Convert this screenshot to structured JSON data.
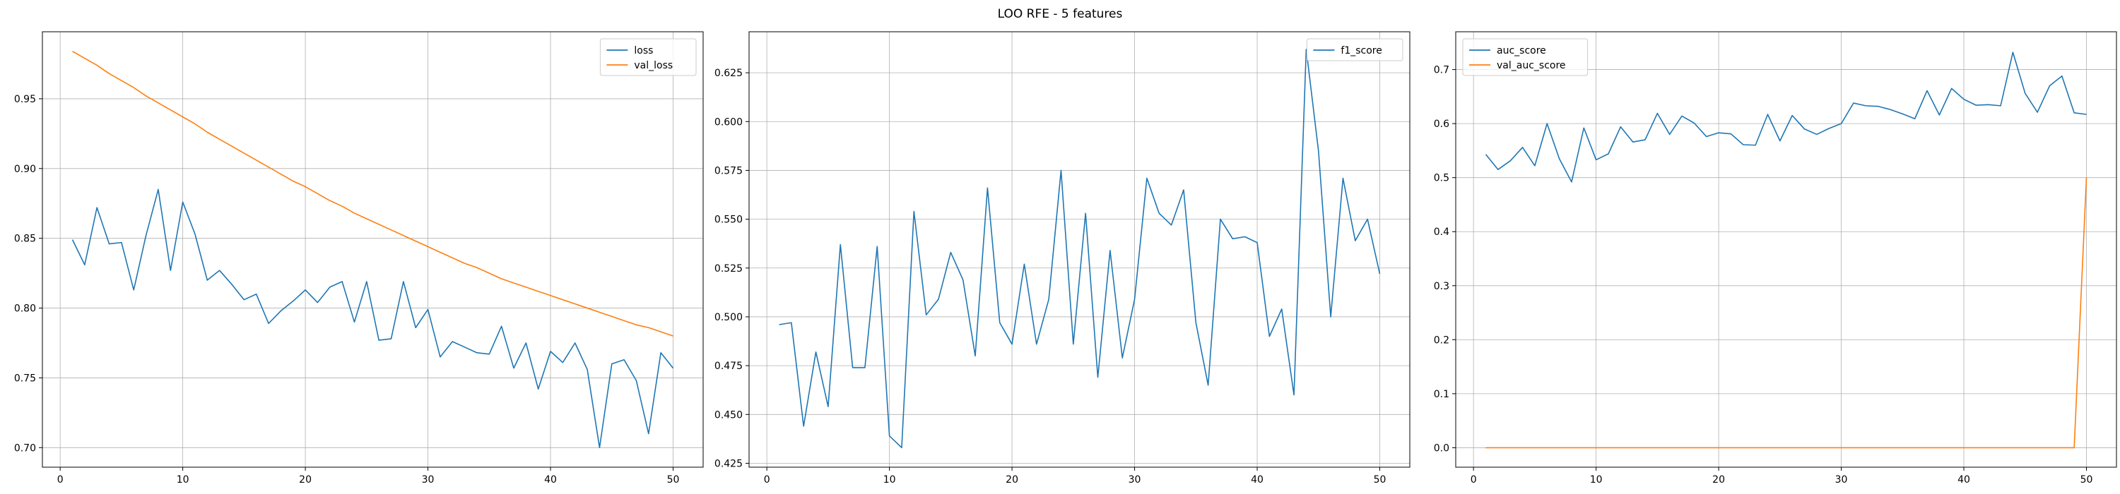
{
  "figure": {
    "suptitle": "LOO RFE - 5 features"
  },
  "chart_data": [
    {
      "type": "line",
      "title": "",
      "xlabel": "",
      "ylabel": "",
      "xlim": [
        -1.45,
        52.45
      ],
      "ylim": [
        0.686,
        0.998
      ],
      "xticks": [
        0,
        10,
        20,
        30,
        40,
        50
      ],
      "yticks": [
        0.7,
        0.75,
        0.8,
        0.85,
        0.9,
        0.95
      ],
      "ytick_labels": [
        "0.70",
        "0.75",
        "0.80",
        "0.85",
        "0.90",
        "0.95"
      ],
      "grid": true,
      "legend": "upper right",
      "x": [
        1,
        2,
        3,
        4,
        5,
        6,
        7,
        8,
        9,
        10,
        11,
        12,
        13,
        14,
        15,
        16,
        17,
        18,
        19,
        20,
        21,
        22,
        23,
        24,
        25,
        26,
        27,
        28,
        29,
        30,
        31,
        32,
        33,
        34,
        35,
        36,
        37,
        38,
        39,
        40,
        41,
        42,
        43,
        44,
        45,
        46,
        47,
        48,
        49,
        50
      ],
      "series": [
        {
          "name": "loss",
          "color": "#1f77b4",
          "values": [
            0.849,
            0.831,
            0.872,
            0.846,
            0.847,
            0.813,
            0.852,
            0.885,
            0.827,
            0.876,
            0.853,
            0.82,
            0.827,
            0.817,
            0.806,
            0.81,
            0.789,
            0.798,
            0.805,
            0.813,
            0.804,
            0.815,
            0.819,
            0.79,
            0.819,
            0.777,
            0.778,
            0.819,
            0.786,
            0.799,
            0.765,
            0.776,
            0.772,
            0.768,
            0.767,
            0.787,
            0.757,
            0.775,
            0.742,
            0.769,
            0.761,
            0.775,
            0.756,
            0.7,
            0.76,
            0.763,
            0.748,
            0.71,
            0.768,
            0.757
          ]
        },
        {
          "name": "val_loss",
          "color": "#ff7f0e",
          "values": [
            0.984,
            0.979,
            0.974,
            0.968,
            0.963,
            0.958,
            0.952,
            0.947,
            0.942,
            0.937,
            0.932,
            0.926,
            0.921,
            0.916,
            0.911,
            0.906,
            0.901,
            0.896,
            0.891,
            0.887,
            0.882,
            0.877,
            0.873,
            0.868,
            0.864,
            0.86,
            0.856,
            0.852,
            0.848,
            0.844,
            0.84,
            0.836,
            0.832,
            0.829,
            0.825,
            0.821,
            0.818,
            0.815,
            0.812,
            0.809,
            0.806,
            0.803,
            0.8,
            0.797,
            0.794,
            0.791,
            0.788,
            0.786,
            0.783,
            0.78
          ]
        }
      ]
    },
    {
      "type": "line",
      "title": "",
      "xlabel": "",
      "ylabel": "",
      "xlim": [
        -1.45,
        52.45
      ],
      "ylim": [
        0.423,
        0.646
      ],
      "xticks": [
        0,
        10,
        20,
        30,
        40,
        50
      ],
      "yticks": [
        0.425,
        0.45,
        0.475,
        0.5,
        0.525,
        0.55,
        0.575,
        0.6,
        0.625
      ],
      "ytick_labels": [
        "0.425",
        "0.450",
        "0.475",
        "0.500",
        "0.525",
        "0.550",
        "0.575",
        "0.600",
        "0.625"
      ],
      "grid": true,
      "legend": "upper right",
      "x": [
        1,
        2,
        3,
        4,
        5,
        6,
        7,
        8,
        9,
        10,
        11,
        12,
        13,
        14,
        15,
        16,
        17,
        18,
        19,
        20,
        21,
        22,
        23,
        24,
        25,
        26,
        27,
        28,
        29,
        30,
        31,
        32,
        33,
        34,
        35,
        36,
        37,
        38,
        39,
        40,
        41,
        42,
        43,
        44,
        45,
        46,
        47,
        48,
        49,
        50
      ],
      "series": [
        {
          "name": "f1_score",
          "color": "#1f77b4",
          "values": [
            0.496,
            0.497,
            0.444,
            0.482,
            0.454,
            0.537,
            0.474,
            0.474,
            0.536,
            0.439,
            0.433,
            0.554,
            0.501,
            0.509,
            0.533,
            0.519,
            0.48,
            0.566,
            0.497,
            0.486,
            0.527,
            0.486,
            0.509,
            0.575,
            0.486,
            0.553,
            0.469,
            0.534,
            0.479,
            0.509,
            0.571,
            0.553,
            0.547,
            0.565,
            0.497,
            0.465,
            0.55,
            0.54,
            0.541,
            0.538,
            0.49,
            0.504,
            0.46,
            0.637,
            0.585,
            0.5,
            0.571,
            0.539,
            0.55,
            0.522
          ]
        }
      ]
    },
    {
      "type": "line",
      "title": "",
      "xlabel": "",
      "ylabel": "",
      "xlim": [
        -1.45,
        52.45
      ],
      "ylim": [
        -0.036,
        0.77
      ],
      "xticks": [
        0,
        10,
        20,
        30,
        40,
        50
      ],
      "yticks": [
        0.0,
        0.1,
        0.2,
        0.3,
        0.4,
        0.5,
        0.6,
        0.7
      ],
      "ytick_labels": [
        "0.0",
        "0.1",
        "0.2",
        "0.3",
        "0.4",
        "0.5",
        "0.6",
        "0.7"
      ],
      "grid": true,
      "legend": "upper left",
      "x": [
        1,
        2,
        3,
        4,
        5,
        6,
        7,
        8,
        9,
        10,
        11,
        12,
        13,
        14,
        15,
        16,
        17,
        18,
        19,
        20,
        21,
        22,
        23,
        24,
        25,
        26,
        27,
        28,
        29,
        30,
        31,
        32,
        33,
        34,
        35,
        36,
        37,
        38,
        39,
        40,
        41,
        42,
        43,
        44,
        45,
        46,
        47,
        48,
        49,
        50
      ],
      "series": [
        {
          "name": "auc_score",
          "color": "#1f77b4",
          "values": [
            0.543,
            0.515,
            0.531,
            0.556,
            0.522,
            0.6,
            0.535,
            0.492,
            0.592,
            0.533,
            0.544,
            0.594,
            0.566,
            0.57,
            0.619,
            0.58,
            0.614,
            0.601,
            0.576,
            0.583,
            0.581,
            0.561,
            0.56,
            0.617,
            0.568,
            0.615,
            0.59,
            0.58,
            0.591,
            0.6,
            0.638,
            0.633,
            0.632,
            0.626,
            0.618,
            0.609,
            0.661,
            0.616,
            0.665,
            0.645,
            0.634,
            0.635,
            0.633,
            0.732,
            0.656,
            0.621,
            0.67,
            0.688,
            0.62,
            0.617
          ]
        },
        {
          "name": "val_auc_score",
          "color": "#ff7f0e",
          "values": [
            0,
            0,
            0,
            0,
            0,
            0,
            0,
            0,
            0,
            0,
            0,
            0,
            0,
            0,
            0,
            0,
            0,
            0,
            0,
            0,
            0,
            0,
            0,
            0,
            0,
            0,
            0,
            0,
            0,
            0,
            0,
            0,
            0,
            0,
            0,
            0,
            0,
            0,
            0,
            0,
            0,
            0,
            0,
            0,
            0,
            0,
            0,
            0,
            0,
            0.5
          ]
        }
      ]
    }
  ]
}
